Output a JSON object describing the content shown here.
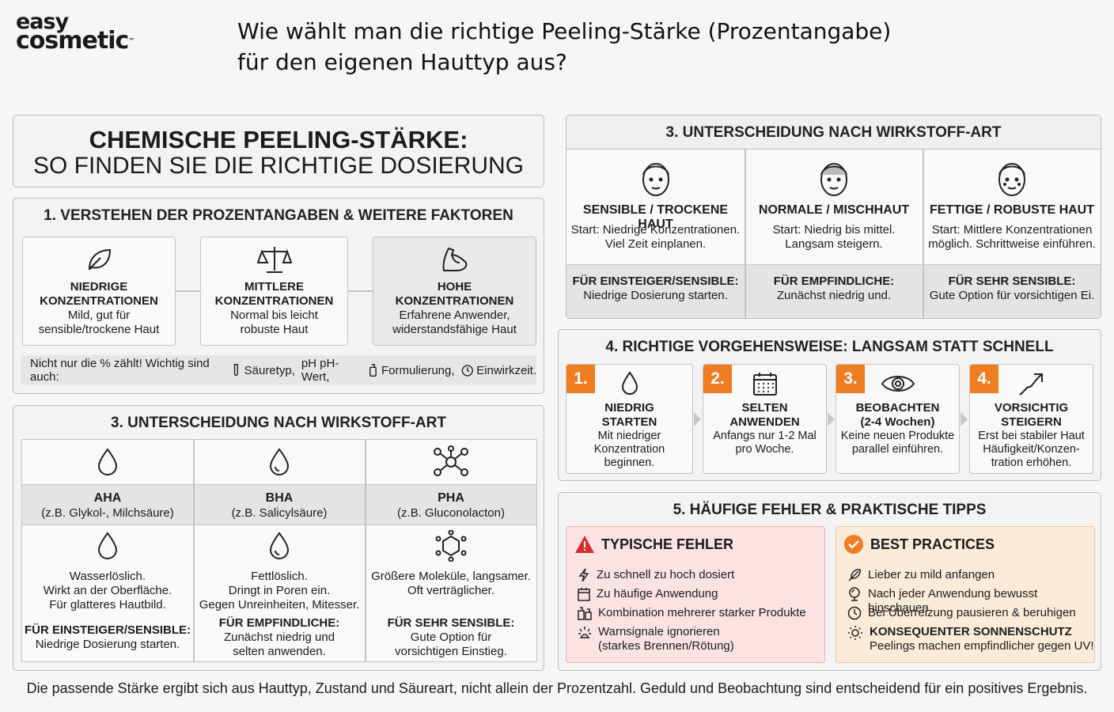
{
  "logo": {
    "line1": "easy",
    "line2": "cosmetic",
    "tm": "™"
  },
  "headline": {
    "line1": "Wie wählt man die richtige Peeling-Stärke (Prozentangabe)",
    "line2": "für den eigenen Hauttyp aus?"
  },
  "intro": {
    "title1": "CHEMISCHE PEELING-STÄRKE:",
    "title2": "SO FINDEN SIE DIE RICHTIGE DOSIERUNG"
  },
  "section1": {
    "title": "1. VERSTEHEN DER PROZENTANGABEN & WEITERE FAKTOREN",
    "items": [
      {
        "icon": "leaf-icon",
        "title1": "NIEDRIGE",
        "title2": "KONZENTRATIONEN",
        "desc1": "Mild, gut für",
        "desc2": "sensible/trockene Haut"
      },
      {
        "icon": "scale-icon",
        "title1": "MITTLERE",
        "title2": "KONZENTRATIONEN",
        "desc1": "Normal bis leicht",
        "desc2": "robuste Haut"
      },
      {
        "icon": "muscle-icon",
        "title1": "HOHE",
        "title2": "KONZENTRATIONEN",
        "desc1": "Erfahrene Anwender,",
        "desc2": "widerstandsfähige Haut"
      }
    ],
    "footer": {
      "lead": "Nicht nur die % zählt! Wichtig sind auch:",
      "f1": "Säuretyp,",
      "f2": "pH pH-Wert,",
      "f3": "Formulierung,",
      "f4": "Einwirkzeit."
    }
  },
  "section3_left": {
    "title": "3. UNTERSCHEIDUNG NACH WIRKSTOFF-ART",
    "columns": [
      {
        "icon": "drop-icon",
        "name": "AHA",
        "example": "(z.B. Glykol-, Milchsäure)",
        "desc1": "Wasserlöslich.",
        "desc2": "Wirkt an der Oberfläche.",
        "desc3": "Für glatteres Hautbild.",
        "rec_title": "FÜR EINSTEIGER/SENSIBLE:",
        "rec1": "Niedrige Dosierung starten.",
        "rec2": ""
      },
      {
        "icon": "drop-icon",
        "name": "BHA",
        "example": "(z.B. Salicylsäure)",
        "desc1": "Fettlöslich.",
        "desc2": "Dringt in Poren ein.",
        "desc3": "Gegen Unreinheiten, Mitesser.",
        "rec_title": "FÜR EMPFINDLICHE:",
        "rec1": "Zunächst niedrig und",
        "rec2": "selten anwenden."
      },
      {
        "icon": "molecule-icon",
        "name": "PHA",
        "example": "(z.B. Gluconolacton)",
        "desc1": "Größere Moleküle, langsamer.",
        "desc2": "Oft verträglicher.",
        "desc3": "",
        "rec_title": "FÜR SEHR SENSIBLE:",
        "rec1": "Gute Option für",
        "rec2": "vorsichtigen Einstieg."
      }
    ]
  },
  "section3_right": {
    "title": "3. UNTERSCHEIDUNG NACH WIRKSTOFF-ART",
    "columns": [
      {
        "icon": "face-icon",
        "title": "SENSIBLE / TROCKENE HAUT",
        "desc1": "Start: Niedrige Konzentrationen.",
        "desc2": "Viel Zeit einplanen.",
        "rec_title": "FÜR EINSTEIGER/SENSIBLE:",
        "rec": "Niedrige Dosierung starten."
      },
      {
        "icon": "face-icon",
        "title": "NORMALE / MISCHHAUT",
        "desc1": "Start: Niedrig bis mittel.",
        "desc2": "Langsam steigern.",
        "rec_title": "FÜR EMPFINDLICHE:",
        "rec": "Zunächst niedrig und."
      },
      {
        "icon": "face-icon",
        "title": "FETTIGE / ROBUSTE HAUT",
        "desc1": "Start: Mittlere Konzentrationen",
        "desc2": "möglich. Schrittweise einführen.",
        "rec_title": "FÜR SEHR SENSIBLE:",
        "rec": "Gute Option für vorsichtigen Ei."
      }
    ]
  },
  "section4": {
    "title": "4. RICHTIGE VORGEHENSWEISE: LANGSAM STATT SCHNELL",
    "steps": [
      {
        "num": "1.",
        "icon": "drop-icon",
        "t1": "NIEDRIG",
        "t2": "STARTEN",
        "d1": "Mit niedriger",
        "d2": "Konzentration",
        "d3": "beginnen."
      },
      {
        "num": "2.",
        "icon": "calendar-icon",
        "t1": "SELTEN",
        "t2": "ANWENDEN",
        "d1": "Anfangs nur 1-2 Mal",
        "d2": "pro Woche.",
        "d3": ""
      },
      {
        "num": "3.",
        "icon": "eye-icon",
        "t1": "BEOBACHTEN",
        "t2": "(2-4 Wochen)",
        "d1": "Keine neuen Produkte",
        "d2": "parallel einführen.",
        "d3": ""
      },
      {
        "num": "4.",
        "icon": "trend-up-icon",
        "t1": "VORSICHTIG",
        "t2": "STEIGERN",
        "d1": "Erst bei stabiler Haut",
        "d2": "Häufigkeit/Konzen-",
        "d3": "tration erhöhen."
      }
    ]
  },
  "section5": {
    "title": "5. HÄUFIGE FEHLER & PRAKTISCHE TIPPS",
    "errors": {
      "title": "TYPISCHE FEHLER",
      "color": "#d32f2f",
      "items": [
        "Zu schnell zu hoch dosiert",
        "Zu häufige Anwendung",
        "Kombination mehrerer starker Produkte",
        "Warnsignale ignorieren",
        "(starkes Brennen/Rötung)"
      ]
    },
    "best": {
      "title": "BEST PRACTICES",
      "color": "#ef7d22",
      "items": [
        "Lieber zu mild anfangen",
        "Nach jeder Anwendung bewusst hinschauen",
        "Bei Überreizung pausieren & beruhigen",
        "KONSEQUENTER SONNENSCHUTZ",
        "Peelings machen empfindlicher gegen UV!"
      ]
    }
  },
  "footer": "Die passende Stärke ergibt sich aus Hauttyp, Zustand und Säureart, nicht allein der Prozentzahl. Geduld und Beobachtung sind entscheidend für ein positives Ergebnis."
}
